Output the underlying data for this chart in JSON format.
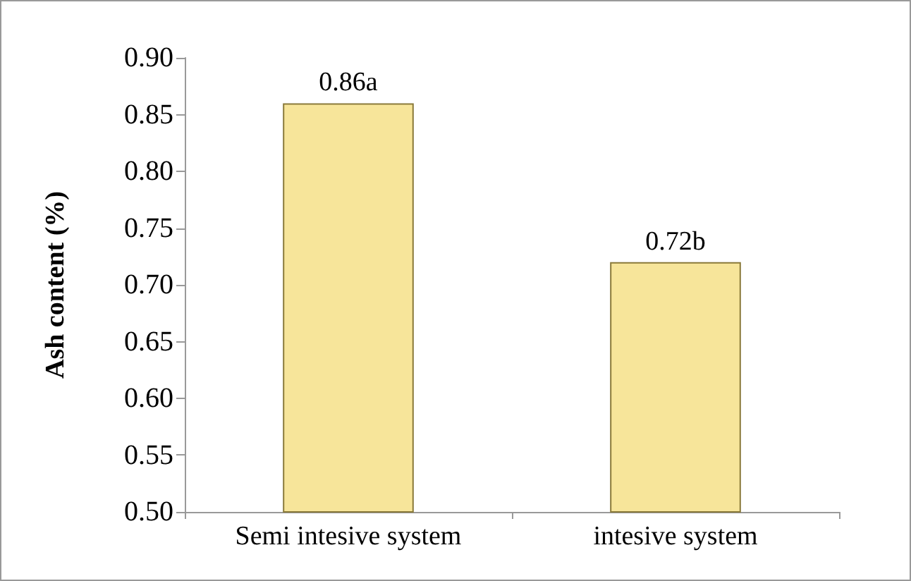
{
  "chart_data": {
    "type": "bar",
    "ylabel": "Ash content (%)",
    "categories": [
      "Semi intesive system",
      "intesive system"
    ],
    "values": [
      0.86,
      0.72
    ],
    "value_labels": [
      "0.86a",
      "0.72b"
    ],
    "color": "#f7e59a",
    "ylim": [
      0.5,
      0.9
    ],
    "yticks": [
      {
        "value": 0.5,
        "label": "0.50"
      },
      {
        "value": 0.55,
        "label": "0.55"
      },
      {
        "value": 0.6,
        "label": "0.60"
      },
      {
        "value": 0.65,
        "label": "0.65"
      },
      {
        "value": 0.7,
        "label": "0.70"
      },
      {
        "value": 0.75,
        "label": "0.75"
      },
      {
        "value": 0.8,
        "label": "0.80"
      },
      {
        "value": 0.85,
        "label": "0.85"
      },
      {
        "value": 0.9,
        "label": "0.90"
      }
    ],
    "grid": false
  }
}
